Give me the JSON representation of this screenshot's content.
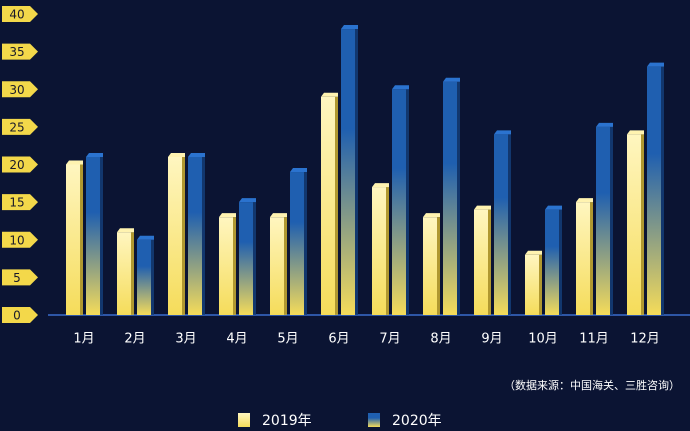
{
  "chart_data": {
    "type": "bar",
    "categories": [
      "1月",
      "2月",
      "3月",
      "4月",
      "5月",
      "6月",
      "7月",
      "8月",
      "9月",
      "10月",
      "11月",
      "12月"
    ],
    "series": [
      {
        "name": "2019年",
        "color": "#f5dc5a",
        "values": [
          20,
          11,
          21,
          13,
          13,
          29,
          17,
          13,
          14,
          8,
          15,
          24
        ]
      },
      {
        "name": "2020年",
        "color": "#1f5fb0",
        "values": [
          21,
          10,
          21,
          15,
          19,
          38,
          30,
          31,
          24,
          14,
          25,
          33
        ]
      }
    ],
    "ylim": [
      0,
      40
    ],
    "yticks": [
      0,
      5,
      10,
      15,
      20,
      25,
      30,
      35,
      40
    ],
    "source": "（数据来源：中国海关、三胜咨询）"
  }
}
